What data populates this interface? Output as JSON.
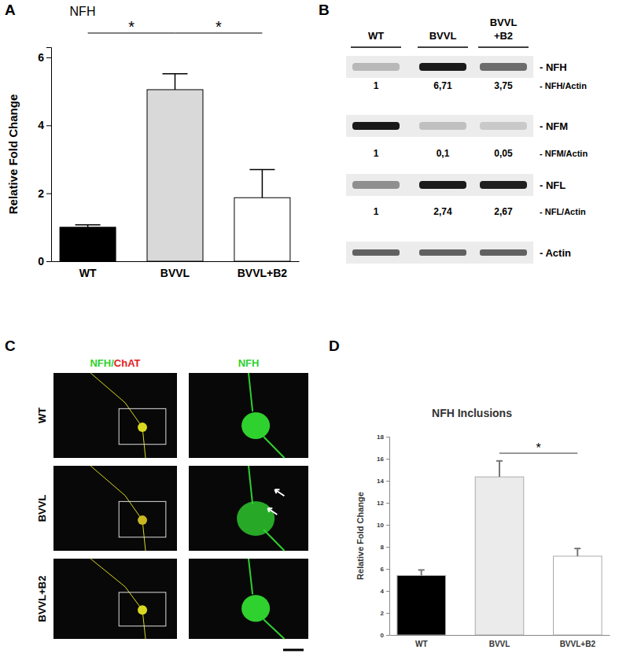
{
  "chart_data": [
    {
      "type": "bar",
      "panel": "A",
      "title": "NFH",
      "y_label": "Relative Fold Change",
      "categories": [
        "WT",
        "BVVL",
        "BVVL+B2"
      ],
      "values": [
        1.0,
        5.05,
        1.87
      ],
      "errors": [
        0.07,
        0.47,
        0.83
      ],
      "colors": [
        "#000000",
        "#d9d9d9",
        "#ffffff"
      ],
      "ylim": [
        0,
        6.3
      ],
      "yticks": [
        0,
        2,
        4,
        6
      ],
      "significance": [
        {
          "pair": [
            "WT",
            "BVVL"
          ],
          "label": "*"
        },
        {
          "pair": [
            "BVVL",
            "BVVL+B2"
          ],
          "label": "*"
        }
      ]
    },
    {
      "type": "blot",
      "panel": "B",
      "lanes": [
        "WT",
        "BVVL",
        "BVVL\n+B2"
      ],
      "rows": [
        {
          "label": "- NFH",
          "ratio_label": "- NFH/Actin",
          "values": [
            1,
            6.71,
            3.75
          ],
          "value_labels": [
            "1",
            "6,71",
            "3,75"
          ]
        },
        {
          "label": "- NFM",
          "ratio_label": "- NFM/Actin",
          "values": [
            1,
            0.1,
            0.05
          ],
          "value_labels": [
            "1",
            "0,1",
            "0,05"
          ]
        },
        {
          "label": "- NFL",
          "ratio_label": "- NFL/Actin",
          "values": [
            1,
            2.74,
            2.67
          ],
          "value_labels": [
            "1",
            "2,74",
            "2,67"
          ]
        },
        {
          "label": "- Actin"
        }
      ]
    },
    {
      "type": "image",
      "panel": "C",
      "column_titles": [
        [
          {
            "text": "NFH",
            "color": "#2fd12f"
          },
          {
            "text": "/",
            "color": "#2fd12f"
          },
          {
            "text": "ChAT",
            "color": "#e02020"
          }
        ],
        [
          {
            "text": "NFH",
            "color": "#2fd12f"
          }
        ]
      ],
      "row_labels": [
        "WT",
        "BVVL",
        "BVVL+B2"
      ]
    },
    {
      "type": "bar",
      "panel": "D",
      "title": "NFH Inclusions",
      "y_label": "Relative Fold Change",
      "categories": [
        "WT",
        "BVVL",
        "BVVL+B2"
      ],
      "values": [
        5.4,
        14.35,
        7.15
      ],
      "errors": [
        0.5,
        1.45,
        0.7
      ],
      "colors": [
        "#000000",
        "#ebebeb",
        "#ffffff"
      ],
      "ylim": [
        0,
        18
      ],
      "yticks": [
        0,
        2,
        4,
        6,
        8,
        10,
        12,
        14,
        16,
        18
      ],
      "significance": [
        {
          "pair": [
            "BVVL",
            "BVVL+B2"
          ],
          "label": "*"
        }
      ]
    }
  ]
}
